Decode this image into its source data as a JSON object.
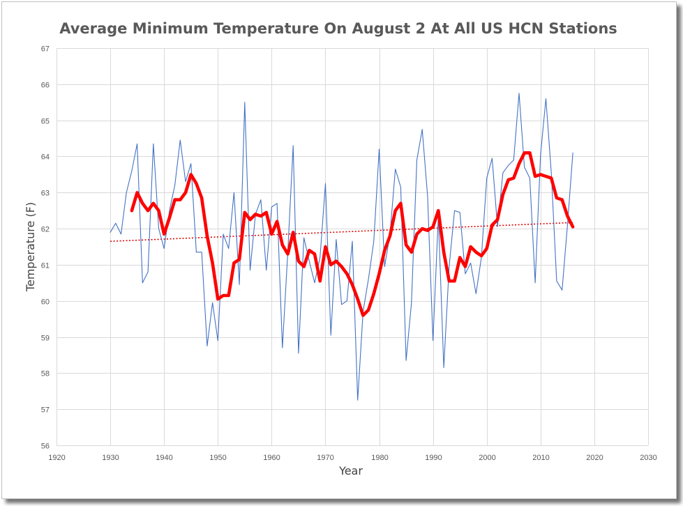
{
  "chart_data": {
    "type": "line",
    "title": "Average Minimum Temperature On August 2 At All US HCN Stations",
    "xlabel": "Year",
    "ylabel": "Temperature (F)",
    "xlim": [
      1920,
      2030
    ],
    "ylim": [
      56,
      67
    ],
    "x_ticks": [
      1920,
      1930,
      1940,
      1950,
      1960,
      1970,
      1980,
      1990,
      2000,
      2010,
      2020,
      2030
    ],
    "y_ticks": [
      56,
      57,
      58,
      59,
      60,
      61,
      62,
      63,
      64,
      65,
      66,
      67
    ],
    "grid": "vertical and horizontal",
    "legend": "none",
    "series": [
      {
        "color": "#4472c4",
        "style": "thin line",
        "x": [
          1930,
          1931,
          1932,
          1933,
          1934,
          1935,
          1936,
          1937,
          1938,
          1939,
          1940,
          1941,
          1942,
          1943,
          1944,
          1945,
          1946,
          1947,
          1948,
          1949,
          1950,
          1951,
          1952,
          1953,
          1954,
          1955,
          1956,
          1957,
          1958,
          1959,
          1960,
          1961,
          1962,
          1963,
          1964,
          1965,
          1966,
          1967,
          1968,
          1969,
          1970,
          1971,
          1972,
          1973,
          1974,
          1975,
          1976,
          1977,
          1978,
          1979,
          1980,
          1981,
          1982,
          1983,
          1984,
          1985,
          1986,
          1987,
          1988,
          1989,
          1990,
          1991,
          1992,
          1993,
          1994,
          1995,
          1996,
          1997,
          1998,
          1999,
          2000,
          2001,
          2002,
          2003,
          2004,
          2005,
          2006,
          2007,
          2008,
          2009,
          2010,
          2011,
          2012,
          2013,
          2014,
          2015,
          2016
        ],
        "y": [
          61.9,
          62.15,
          61.85,
          63.0,
          63.6,
          64.35,
          60.5,
          60.8,
          64.35,
          62.0,
          61.45,
          62.5,
          63.2,
          64.45,
          63.3,
          63.8,
          61.35,
          61.35,
          58.75,
          59.95,
          58.9,
          61.85,
          61.45,
          63.0,
          60.45,
          65.5,
          60.85,
          62.4,
          62.8,
          60.85,
          62.6,
          62.7,
          58.7,
          61.35,
          64.3,
          58.55,
          61.75,
          61.1,
          60.5,
          61.2,
          63.25,
          59.05,
          61.7,
          59.9,
          60.0,
          61.65,
          57.25,
          59.7,
          60.6,
          61.65,
          64.2,
          60.95,
          61.85,
          63.65,
          63.15,
          58.35,
          59.95,
          63.9,
          64.75,
          62.9,
          58.9,
          62.35,
          58.15,
          60.95,
          62.5,
          62.45,
          60.75,
          61.05,
          60.2,
          61.2,
          63.4,
          63.95,
          62.05,
          63.55,
          63.75,
          63.9,
          65.75,
          63.7,
          63.4,
          60.5,
          64.05,
          65.6,
          63.55,
          60.55,
          60.3,
          62.1,
          64.1
        ]
      },
      {
        "color": "#ff0000",
        "style": "thick line",
        "x": [
          1934,
          1935,
          1936,
          1937,
          1938,
          1939,
          1940,
          1941,
          1942,
          1943,
          1944,
          1945,
          1946,
          1947,
          1948,
          1949,
          1950,
          1951,
          1952,
          1953,
          1954,
          1955,
          1956,
          1957,
          1958,
          1959,
          1960,
          1961,
          1962,
          1963,
          1964,
          1965,
          1966,
          1967,
          1968,
          1969,
          1970,
          1971,
          1972,
          1973,
          1974,
          1975,
          1976,
          1977,
          1978,
          1979,
          1980,
          1981,
          1982,
          1983,
          1984,
          1985,
          1986,
          1987,
          1988,
          1989,
          1990,
          1991,
          1992,
          1993,
          1994,
          1995,
          1996,
          1997,
          1998,
          1999,
          2000,
          2001,
          2002,
          2003,
          2004,
          2005,
          2006,
          2007,
          2008,
          2009,
          2010,
          2011,
          2012,
          2013,
          2014,
          2015,
          2016
        ],
        "y": [
          62.5,
          63.0,
          62.7,
          62.5,
          62.7,
          62.5,
          61.85,
          62.3,
          62.8,
          62.8,
          63.0,
          63.5,
          63.25,
          62.85,
          61.8,
          61.05,
          60.05,
          60.15,
          60.15,
          61.05,
          61.15,
          62.45,
          62.25,
          62.4,
          62.35,
          62.45,
          61.85,
          62.2,
          61.55,
          61.3,
          61.9,
          61.1,
          60.95,
          61.4,
          61.3,
          60.55,
          61.5,
          61.0,
          61.1,
          60.95,
          60.75,
          60.45,
          60.05,
          59.6,
          59.75,
          60.2,
          60.75,
          61.4,
          61.8,
          62.5,
          62.7,
          61.55,
          61.35,
          61.85,
          62.0,
          61.95,
          62.05,
          62.5,
          61.35,
          60.55,
          60.55,
          61.2,
          60.95,
          61.5,
          61.35,
          61.25,
          61.45,
          62.1,
          62.25,
          62.95,
          63.35,
          63.4,
          63.8,
          64.1,
          64.1,
          63.45,
          63.5,
          63.45,
          63.4,
          62.85,
          62.8,
          62.35,
          62.05
        ]
      }
    ],
    "trendline": {
      "color": "#e00000",
      "style": "dotted",
      "x": [
        1930,
        2016
      ],
      "y": [
        61.65,
        62.17
      ]
    }
  }
}
